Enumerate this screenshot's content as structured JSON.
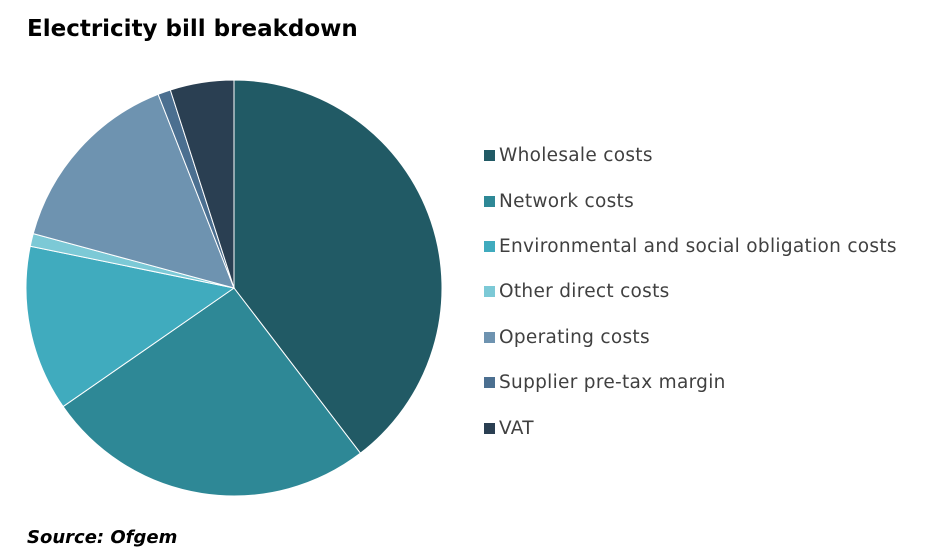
{
  "title": "Electricity bill breakdown",
  "source": "Source: Ofgem",
  "chart_data": {
    "type": "pie",
    "title": "Electricity bill breakdown",
    "labels": [
      "Wholesale costs",
      "Network costs",
      "Environmental and social obligation costs",
      "Other direct costs",
      "Operating costs",
      "Supplier pre-tax margin",
      "VAT"
    ],
    "values": [
      40,
      26,
      13,
      1,
      15,
      1,
      5
    ],
    "colors": [
      "#215a65",
      "#2e8896",
      "#40abbe",
      "#7cc9d6",
      "#6e93b0",
      "#4b6f90",
      "#2a3f52"
    ],
    "legend_position": "right"
  }
}
